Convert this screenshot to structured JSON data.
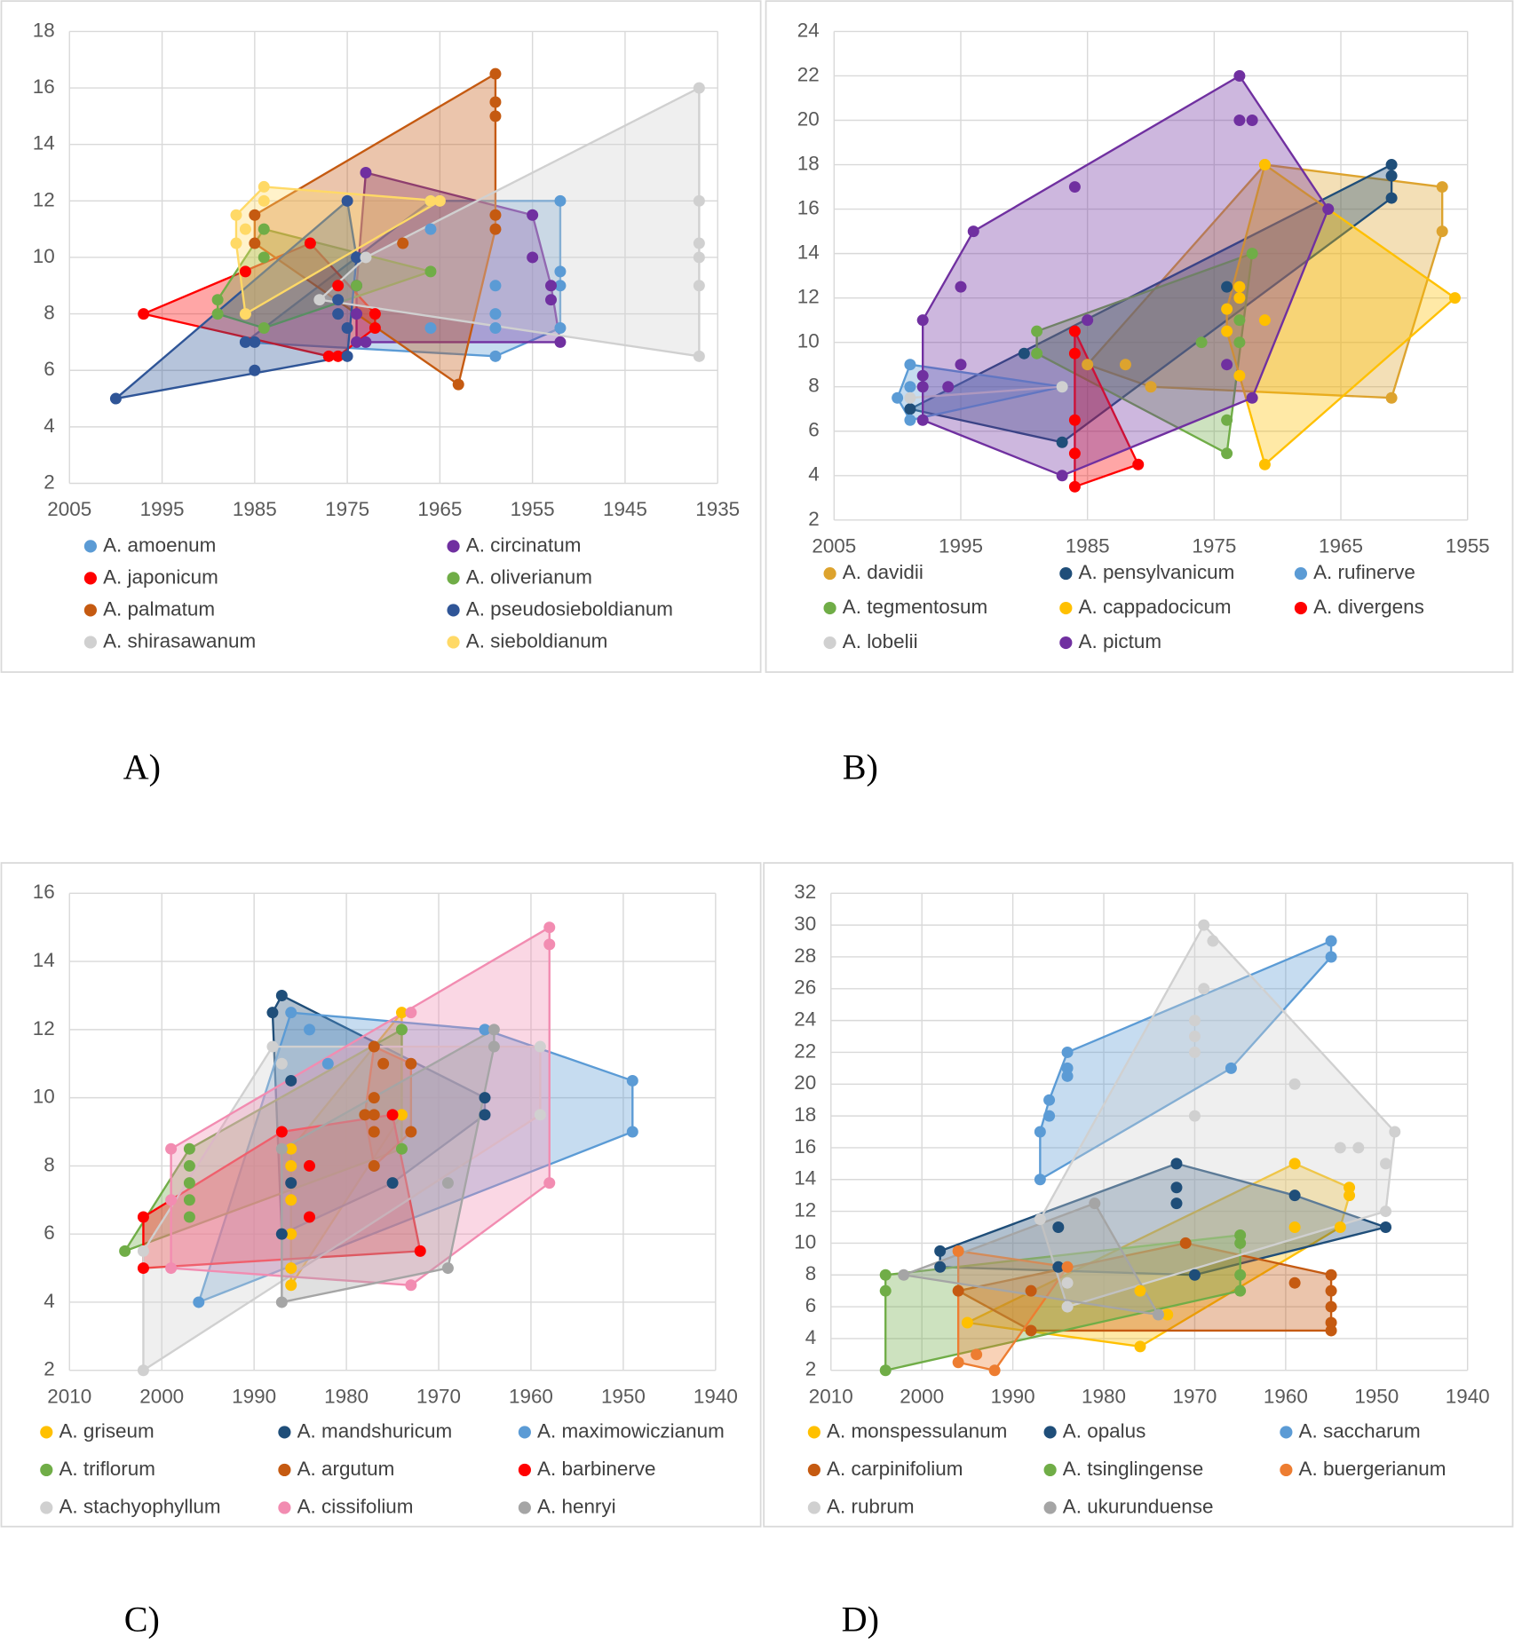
{
  "chart_data": [
    {
      "type": "scatter",
      "label": "A)",
      "xlim": [
        2005,
        1935
      ],
      "ylim": [
        2,
        18
      ],
      "xticks": [
        2005,
        1995,
        1985,
        1975,
        1965,
        1955,
        1945,
        1935
      ],
      "yticks": [
        2,
        4,
        6,
        8,
        10,
        12,
        14,
        16,
        18
      ],
      "grid": true,
      "series": [
        {
          "name": "A. amoenum",
          "color": "#5b9bd5",
          "x": [
            1952,
            1952,
            1952,
            1952,
            1959,
            1959,
            1959,
            1959,
            1966,
            1966,
            1966,
            1986
          ],
          "y": [
            12,
            9.5,
            9,
            7.5,
            6.5,
            7.5,
            8,
            9,
            12,
            11,
            7.5,
            7
          ]
        },
        {
          "name": "A. circinatum",
          "color": "#7030a0",
          "x": [
            1973,
            1955,
            1955,
            1953,
            1953,
            1952,
            1973,
            1974,
            1974,
            1974
          ],
          "y": [
            13,
            11.5,
            10,
            9,
            8.5,
            7,
            7,
            7,
            8,
            9
          ]
        },
        {
          "name": "A. japonicum",
          "color": "#ff0000",
          "x": [
            1997,
            1986,
            1979,
            1976,
            1972,
            1972,
            1977,
            1976
          ],
          "y": [
            8,
            9.5,
            10.5,
            9,
            8,
            7.5,
            6.5,
            6.5
          ]
        },
        {
          "name": "A. oliverianum",
          "color": "#70ad47",
          "x": [
            1989,
            1989,
            1984,
            1984,
            1984,
            1966,
            1974
          ],
          "y": [
            8.5,
            8,
            11,
            10,
            7.5,
            9.5,
            9
          ]
        },
        {
          "name": "A. palmatum",
          "color": "#c55a11",
          "x": [
            1959,
            1959,
            1959,
            1959,
            1959,
            1963,
            1969,
            1985,
            1985
          ],
          "y": [
            16.5,
            15.5,
            15,
            11.5,
            11,
            5.5,
            10.5,
            11.5,
            10.5
          ]
        },
        {
          "name": "A. pseudosieboldianum",
          "color": "#2f5597",
          "x": [
            2000,
            1985,
            1986,
            1985,
            1975,
            1974,
            1976,
            1976,
            1975,
            1975
          ],
          "y": [
            5,
            6,
            7,
            7,
            12,
            10,
            8.5,
            8,
            7.5,
            6.5
          ]
        },
        {
          "name": "A. shirasawanum",
          "color": "#d0d0d0",
          "x": [
            1937,
            1937,
            1937,
            1937,
            1937,
            1937,
            1978,
            1973
          ],
          "y": [
            16,
            12,
            10.5,
            10,
            9,
            6.5,
            8.5,
            10
          ]
        },
        {
          "name": "A. sieboldianum",
          "color": "#ffd966",
          "x": [
            1984,
            1984,
            1987,
            1986,
            1987,
            1986,
            1965,
            1966
          ],
          "y": [
            12.5,
            12,
            11.5,
            11,
            10.5,
            8,
            12,
            12
          ]
        }
      ]
    },
    {
      "type": "scatter",
      "label": "B)",
      "xlim": [
        2005,
        1955
      ],
      "ylim": [
        2,
        24
      ],
      "xticks": [
        2005,
        1995,
        1985,
        1975,
        1965,
        1955
      ],
      "yticks": [
        2,
        4,
        6,
        8,
        10,
        12,
        14,
        16,
        18,
        20,
        22,
        24
      ],
      "grid": true,
      "series": [
        {
          "name": "A. davidii",
          "color": "#dda32e",
          "x": [
            1957,
            1957,
            1961,
            1971,
            1985,
            1982,
            1980
          ],
          "y": [
            17,
            15,
            7.5,
            18,
            9,
            9,
            8
          ]
        },
        {
          "name": "A. pensylvanicum",
          "color": "#1f4e79",
          "x": [
            1961,
            1961,
            1961,
            1974,
            1990,
            1999,
            1987
          ],
          "y": [
            18,
            17.5,
            16.5,
            12.5,
            9.5,
            7,
            5.5
          ]
        },
        {
          "name": "A. rufinerve",
          "color": "#5b9bd5",
          "x": [
            1999,
            2000,
            1999,
            1999,
            1987
          ],
          "y": [
            9,
            7.5,
            8,
            6.5,
            8
          ]
        },
        {
          "name": "A. tegmentosum",
          "color": "#70ad47",
          "x": [
            1989,
            1989,
            1972,
            1973,
            1973,
            1976,
            1974,
            1974
          ],
          "y": [
            10.5,
            9.5,
            14,
            11,
            10,
            10,
            6.5,
            5
          ]
        },
        {
          "name": "A. cappadocicum",
          "color": "#ffc000",
          "x": [
            1971,
            1971,
            1973,
            1973,
            1974,
            1974,
            1973,
            1971,
            1956
          ],
          "y": [
            18,
            11,
            12.5,
            12,
            11.5,
            10.5,
            8.5,
            4.5,
            12
          ]
        },
        {
          "name": "A. divergens",
          "color": "#ff0000",
          "x": [
            1986,
            1986,
            1986,
            1986,
            1986,
            1981
          ],
          "y": [
            10.5,
            9.5,
            6.5,
            5,
            3.5,
            4.5
          ]
        },
        {
          "name": "A. lobelii",
          "color": "#d0d0d0",
          "x": [
            1999,
            1987
          ],
          "y": [
            7.5,
            8
          ]
        },
        {
          "name": "A. pictum",
          "color": "#7030a0",
          "x": [
            1973,
            1973,
            1972,
            1966,
            1972,
            1974,
            1994,
            1995,
            1998,
            1998,
            1998,
            1998,
            1996,
            1995,
            1986,
            1985,
            1987
          ],
          "y": [
            22,
            20,
            20,
            16,
            7.5,
            9,
            15,
            12.5,
            11,
            8.5,
            8,
            6.5,
            8,
            9,
            17,
            11,
            4
          ]
        }
      ]
    },
    {
      "type": "scatter",
      "label": "C)",
      "xlim": [
        2010,
        1940
      ],
      "ylim": [
        2,
        16
      ],
      "xticks": [
        2010,
        2000,
        1990,
        1980,
        1970,
        1960,
        1950,
        1940
      ],
      "yticks": [
        2,
        4,
        6,
        8,
        10,
        12,
        14,
        16
      ],
      "grid": true,
      "series": [
        {
          "name": "A. griseum",
          "color": "#ffc000",
          "x": [
            1974,
            1974,
            1986,
            1986,
            1986,
            1986,
            1986,
            1986
          ],
          "y": [
            12.5,
            9.5,
            5,
            4.5,
            7,
            6,
            8.5,
            8
          ]
        },
        {
          "name": "A. mandshuricum",
          "color": "#1f4e79",
          "x": [
            1987,
            1988,
            1986,
            1986,
            1987,
            1965,
            1965,
            1975
          ],
          "y": [
            13,
            12.5,
            10.5,
            7.5,
            6,
            10,
            9.5,
            7.5
          ]
        },
        {
          "name": "A. maximowiczianum",
          "color": "#5b9bd5",
          "x": [
            1949,
            1949,
            1965,
            1984,
            1986,
            1982,
            1996
          ],
          "y": [
            10.5,
            9,
            12,
            12,
            12.5,
            11,
            4
          ]
        },
        {
          "name": "A. triflorum",
          "color": "#70ad47",
          "x": [
            2004,
            1997,
            1997,
            1997,
            1997,
            1997,
            1974,
            1974
          ],
          "y": [
            5.5,
            8.5,
            8,
            7.5,
            7,
            6.5,
            12,
            8.5
          ]
        },
        {
          "name": "A. argutum",
          "color": "#c55a11",
          "x": [
            1977,
            1976,
            1973,
            1973,
            1977,
            1977,
            1977,
            1978,
            1977
          ],
          "y": [
            11.5,
            11,
            11,
            9,
            10,
            9.5,
            9,
            9.5,
            8
          ]
        },
        {
          "name": "A. barbinerve",
          "color": "#ff0000",
          "x": [
            2002,
            2002,
            1987,
            1984,
            1984,
            1975,
            1972
          ],
          "y": [
            6.5,
            5,
            9,
            8,
            6.5,
            9.5,
            5.5
          ]
        },
        {
          "name": "A. stachyophyllum",
          "color": "#d0d0d0",
          "x": [
            2002,
            2002,
            1987,
            1988,
            1959,
            1959
          ],
          "y": [
            2,
            5.5,
            11,
            11.5,
            11.5,
            9.5
          ]
        },
        {
          "name": "A. cissifolium",
          "color": "#f28cb1",
          "x": [
            1958,
            1958,
            1958,
            1973,
            1999,
            1999,
            1999,
            1973
          ],
          "y": [
            15,
            14.5,
            7.5,
            4.5,
            8.5,
            7,
            5,
            12.5
          ]
        },
        {
          "name": "A. henryi",
          "color": "#a5a5a5",
          "x": [
            1987,
            1969,
            1969,
            1964,
            1964,
            1987
          ],
          "y": [
            4,
            5,
            7.5,
            12,
            11.5,
            8.5
          ]
        }
      ]
    },
    {
      "type": "scatter",
      "label": "D)",
      "xlim": [
        2010,
        1940
      ],
      "ylim": [
        2,
        32
      ],
      "xticks": [
        2010,
        2000,
        1990,
        1980,
        1970,
        1960,
        1950,
        1940
      ],
      "yticks": [
        2,
        4,
        6,
        8,
        10,
        12,
        14,
        16,
        18,
        20,
        22,
        24,
        26,
        28,
        30,
        32
      ],
      "grid": true,
      "series": [
        {
          "name": "A. monspessulanum",
          "color": "#ffc000",
          "x": [
            1995,
            1959,
            1953,
            1953,
            1954,
            1959,
            1976,
            1973,
            1976
          ],
          "y": [
            5,
            15,
            13.5,
            13,
            11,
            11,
            3.5,
            5.5,
            7
          ]
        },
        {
          "name": "A. opalus",
          "color": "#1f4e79",
          "x": [
            1998,
            1998,
            1972,
            1972,
            1972,
            1949,
            1959,
            1970,
            1985,
            1985
          ],
          "y": [
            9.5,
            8.5,
            15,
            13.5,
            12.5,
            11,
            13,
            8,
            11,
            8.5
          ]
        },
        {
          "name": "A. saccharum",
          "color": "#5b9bd5",
          "x": [
            1955,
            1955,
            1966,
            1987,
            1987,
            1986,
            1986,
            1984,
            1984,
            1984
          ],
          "y": [
            29,
            28,
            21,
            14,
            17,
            19,
            18,
            22,
            21,
            20.5
          ]
        },
        {
          "name": "A. carpinifolium",
          "color": "#c55a11",
          "x": [
            1971,
            1955,
            1955,
            1955,
            1955,
            1955,
            1959,
            1988,
            1988,
            1996
          ],
          "y": [
            10,
            8,
            7,
            6,
            5,
            4.5,
            7.5,
            4.5,
            7,
            7
          ]
        },
        {
          "name": "A. tsinglingense",
          "color": "#70ad47",
          "x": [
            2004,
            2004,
            2004,
            1965,
            1965,
            1965,
            1965
          ],
          "y": [
            2,
            8,
            7,
            10.5,
            10,
            8,
            7
          ]
        },
        {
          "name": "A. buergerianum",
          "color": "#ed7d31",
          "x": [
            1996,
            1996,
            1994,
            1992,
            1984
          ],
          "y": [
            9.5,
            2.5,
            3,
            2,
            8.5
          ]
        },
        {
          "name": "A. rubrum",
          "color": "#d0d0d0",
          "x": [
            1969,
            1968,
            1969,
            1970,
            1970,
            1970,
            1970,
            1959,
            1954,
            1952,
            1948,
            1949,
            1949,
            1987,
            1984,
            1984
          ],
          "y": [
            30,
            29,
            26,
            24,
            23,
            22,
            18,
            20,
            16,
            16,
            17,
            15,
            12,
            11.5,
            7.5,
            6
          ]
        },
        {
          "name": "A. ukurunduense",
          "color": "#a5a5a5",
          "x": [
            2002,
            1981,
            1974
          ],
          "y": [
            8,
            12.5,
            5.5
          ]
        }
      ]
    }
  ]
}
